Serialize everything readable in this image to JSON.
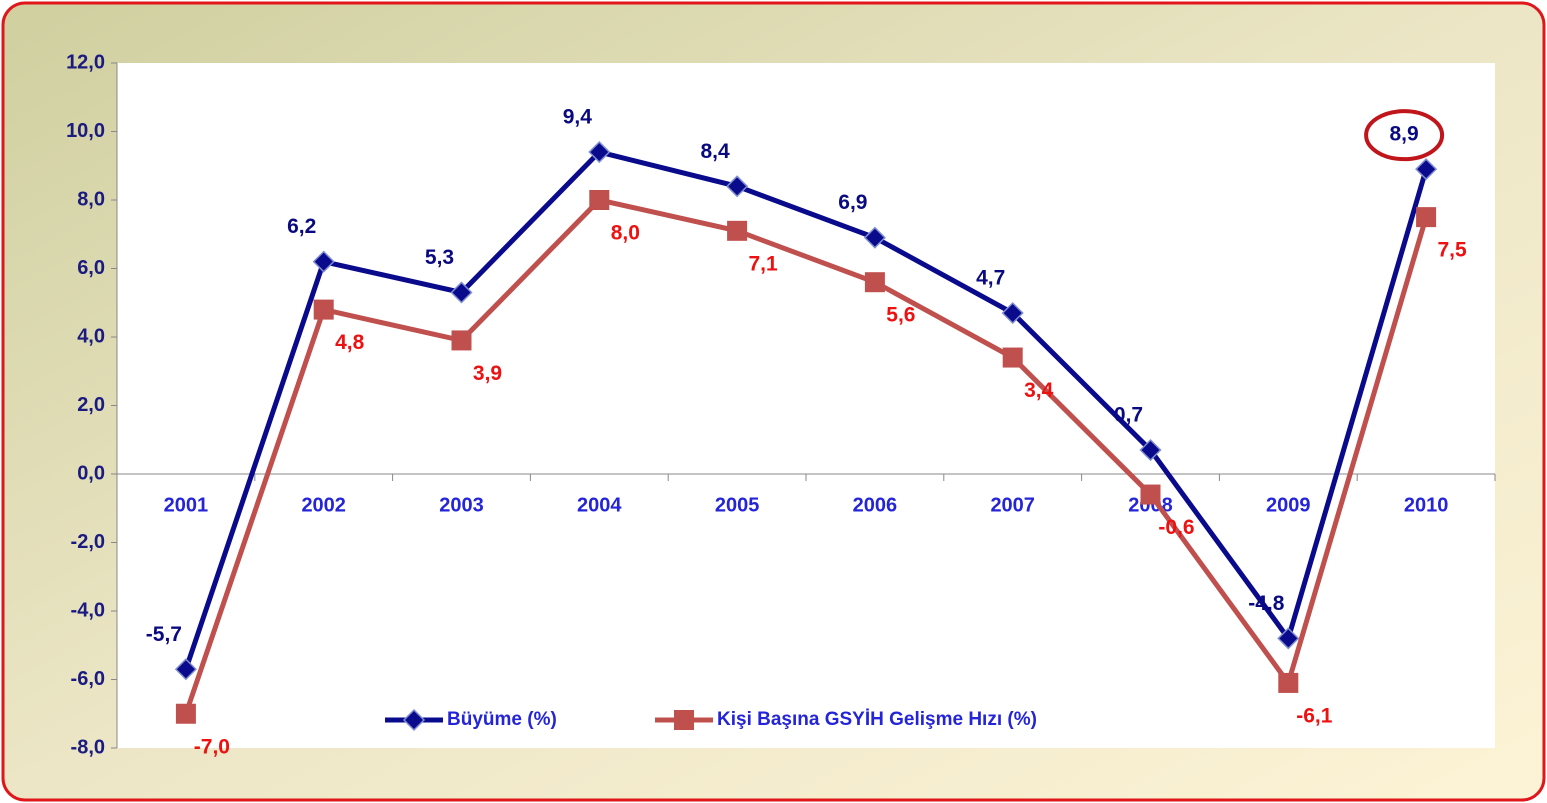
{
  "chart_data": {
    "type": "line",
    "categories": [
      "2001",
      "2002",
      "2003",
      "2004",
      "2005",
      "2006",
      "2007",
      "2008",
      "2009",
      "2010"
    ],
    "series": [
      {
        "name": "Büyüme (%)",
        "color": "#0a0a8c",
        "marker": "diamond",
        "values": [
          -5.7,
          6.2,
          5.3,
          9.4,
          8.4,
          6.9,
          4.7,
          0.7,
          -4.8,
          8.9
        ],
        "value_labels": [
          "-5,7",
          "6,2",
          "5,3",
          "9,4",
          "8,4",
          "6,9",
          "4,7",
          "0,7",
          "-4,8",
          "8,9"
        ]
      },
      {
        "name": "Kişi Başına GSYİH Gelişme Hızı (%)",
        "color": "#c0504d",
        "marker": "square",
        "values": [
          -7.0,
          4.8,
          3.9,
          8.0,
          7.1,
          5.6,
          3.4,
          -0.6,
          -6.1,
          7.5
        ],
        "value_labels": [
          "-7,0",
          "4,8",
          "3,9",
          "8,0",
          "7,1",
          "5,6",
          "3,4",
          "-0,6",
          "-6,1",
          "7,5"
        ]
      }
    ],
    "ylim": [
      -8,
      12
    ],
    "yticks": [
      {
        "value": -8,
        "label": "-8,0"
      },
      {
        "value": -6,
        "label": "-6,0"
      },
      {
        "value": -4,
        "label": "-4,0"
      },
      {
        "value": -2,
        "label": "-2,0"
      },
      {
        "value": 0,
        "label": "0,0"
      },
      {
        "value": 2,
        "label": "2,0"
      },
      {
        "value": 4,
        "label": "4,0"
      },
      {
        "value": 6,
        "label": "6,0"
      },
      {
        "value": 8,
        "label": "8,0"
      },
      {
        "value": 10,
        "label": "10,0"
      },
      {
        "value": 12,
        "label": "12,0"
      }
    ],
    "legend": "bottom"
  }
}
